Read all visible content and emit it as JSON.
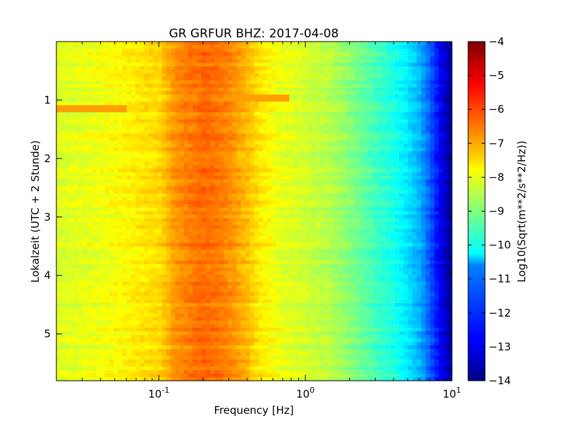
{
  "chart_data": {
    "type": "heatmap",
    "title": "GR GRFUR BHZ: 2017-04-08",
    "xlabel": "Frequency [Hz]",
    "ylabel": "Lokalzeit (UTC + 2 Stunde)",
    "xscale": "log",
    "xlim": [
      0.02,
      10
    ],
    "x_ticks": [
      {
        "value": 0.1,
        "base": "10",
        "exp": "-1"
      },
      {
        "value": 1,
        "base": "10",
        "exp": "0"
      },
      {
        "value": 10,
        "base": "10",
        "exp": "1"
      }
    ],
    "ylim": [
      0,
      5.8
    ],
    "y_inverted": true,
    "y_ticks": [
      1,
      2,
      3,
      4,
      5
    ],
    "colorbar": {
      "label": "Log10(Sqrt(m**2/s**2/Hz))",
      "range": [
        -14,
        -4
      ],
      "ticks": [
        -4,
        -5,
        -6,
        -7,
        -8,
        -9,
        -10,
        -11,
        -12,
        -13,
        -14
      ],
      "colormap": "jet"
    },
    "spectrum_profile": {
      "frequency_hz": [
        0.02,
        0.04,
        0.06,
        0.08,
        0.1,
        0.13,
        0.16,
        0.2,
        0.25,
        0.3,
        0.4,
        0.5,
        0.7,
        1.0,
        1.5,
        2.0,
        3.0,
        4.0,
        5.0,
        6.0,
        7.0,
        8.0,
        9.0,
        10.0
      ],
      "log10_level": [
        -8.1,
        -7.9,
        -7.7,
        -7.5,
        -7.4,
        -6.7,
        -6.5,
        -6.3,
        -6.4,
        -6.6,
        -7.1,
        -7.6,
        -8.0,
        -8.2,
        -8.5,
        -8.9,
        -9.6,
        -10.0,
        -10.5,
        -11.0,
        -11.8,
        -12.6,
        -13.3,
        -13.8
      ]
    },
    "features": [
      {
        "time_h": 1.15,
        "f_min_hz": 0.02,
        "f_max_hz": 0.06,
        "log10_level": -6.8
      },
      {
        "time_h": 0.95,
        "f_min_hz": 0.2,
        "f_max_hz": 0.8,
        "log10_level": -6.8
      }
    ]
  }
}
